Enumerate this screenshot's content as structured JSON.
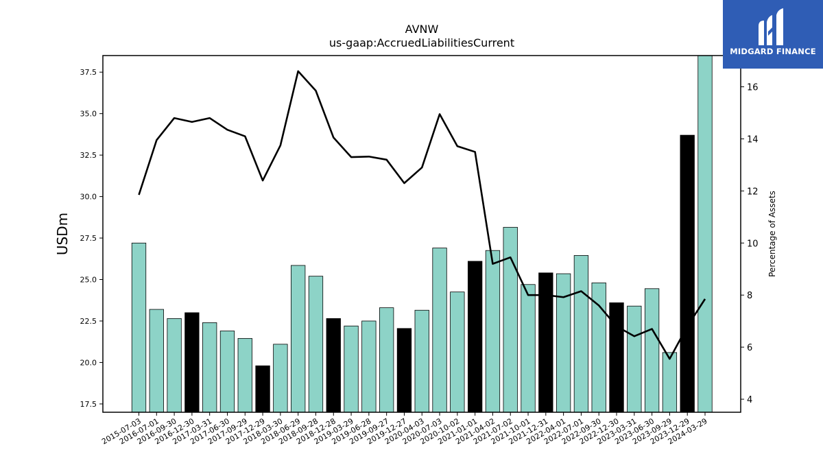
{
  "chart_data": {
    "type": "bar+line",
    "title": "AVNW",
    "subtitle": "us-gaap:AccruedLiabilitiesCurrent",
    "ylabel": "USDm",
    "y2label": "Percentage of Assets",
    "ylim": [
      17.0,
      38.5
    ],
    "y2lim": [
      3.5,
      17.2
    ],
    "yticks": [
      "17.5",
      "20.0",
      "22.5",
      "25.0",
      "27.5",
      "30.0",
      "32.5",
      "35.0",
      "37.5"
    ],
    "y2ticks": [
      "4",
      "6",
      "8",
      "10",
      "12",
      "14",
      "16"
    ],
    "categories": [
      "2015-07-03",
      "2016-07-01",
      "2016-09-30",
      "2016-12-30",
      "2017-03-31",
      "2017-06-30",
      "2017-09-29",
      "2017-12-29",
      "2018-03-30",
      "2018-06-29",
      "2018-09-28",
      "2018-12-28",
      "2019-03-29",
      "2019-06-28",
      "2019-09-27",
      "2019-12-27",
      "2020-04-03",
      "2020-07-03",
      "2020-10-02",
      "2021-01-01",
      "2021-04-02",
      "2021-07-02",
      "2021-10-01",
      "2021-12-31",
      "2022-04-01",
      "2022-07-01",
      "2022-09-30",
      "2022-12-30",
      "2023-03-31",
      "2023-06-30",
      "2023-09-29",
      "2023-12-29",
      "2024-03-29"
    ],
    "bars": {
      "name": "AccruedLiabilitiesCurrent",
      "values": [
        27.2,
        23.2,
        22.65,
        23.0,
        22.4,
        21.9,
        21.45,
        19.8,
        21.1,
        25.85,
        25.2,
        22.65,
        22.2,
        22.5,
        23.3,
        22.05,
        23.15,
        26.9,
        24.25,
        26.1,
        26.75,
        28.15,
        24.7,
        25.4,
        25.35,
        26.45,
        24.8,
        23.6,
        23.4,
        24.45,
        20.6,
        33.7,
        38.5
      ],
      "highlight": [
        false,
        false,
        false,
        true,
        false,
        false,
        false,
        true,
        false,
        false,
        false,
        true,
        false,
        false,
        false,
        true,
        false,
        false,
        false,
        true,
        false,
        false,
        false,
        true,
        false,
        false,
        false,
        true,
        false,
        false,
        false,
        true,
        false
      ]
    },
    "line": {
      "name": "Percentage of Assets",
      "values": [
        11.85,
        13.95,
        14.8,
        14.65,
        14.8,
        14.35,
        14.1,
        12.4,
        13.75,
        16.6,
        15.85,
        14.05,
        13.3,
        13.32,
        13.2,
        12.3,
        12.9,
        14.95,
        13.72,
        13.5,
        9.2,
        9.45,
        8.0,
        8.0,
        7.92,
        8.15,
        7.6,
        6.8,
        6.42,
        6.7,
        5.55,
        6.8,
        7.85
      ]
    },
    "colors": {
      "bar": "#8dd3c7",
      "bar_highlight": "#000000",
      "line": "#000000",
      "axis": "#000000"
    },
    "grid": false
  },
  "logo": {
    "text": "MIDGARD FINANCE",
    "bg": "#2f5db5"
  }
}
